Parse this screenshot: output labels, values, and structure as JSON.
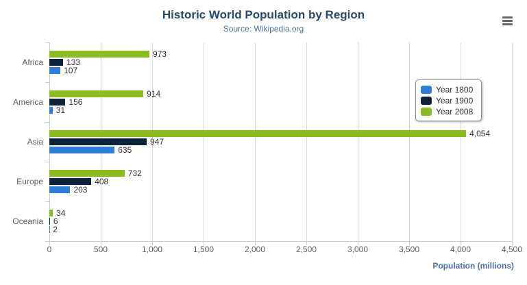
{
  "title": "Historic World Population by Region",
  "subtitle": "Source: Wikipedia.org",
  "menu_icon": "hamburger-menu-icon",
  "colors": {
    "title": "#274b6d",
    "subtitle": "#4d759e",
    "axis_label": "#606060",
    "data_label": "#333333",
    "grid_line": "#d9d9d9",
    "axis_line": "#c0d0e0",
    "legend_border": "#909090",
    "burger": "#666666",
    "axis_title": "#4572a7",
    "series_1800": "#2f7ed8",
    "series_1900": "#0d233a",
    "series_2008": "#8bbc21"
  },
  "legend": {
    "position": "right",
    "items": [
      {
        "label": "Year 1800",
        "color": "#2f7ed8"
      },
      {
        "label": "Year 1900",
        "color": "#0d233a"
      },
      {
        "label": "Year 2008",
        "color": "#8bbc21"
      }
    ]
  },
  "xaxis": {
    "title": "Population (millions)",
    "tick_labels": [
      "0",
      "500",
      "1,000",
      "1,500",
      "2,000",
      "2,500",
      "3,000",
      "3,500",
      "4,000",
      "4,500"
    ],
    "min": 0,
    "max": 4500,
    "tick_interval": 500
  },
  "chart_data": {
    "type": "bar",
    "title": "Historic World Population by Region",
    "subtitle": "Source: Wikipedia.org",
    "categories": [
      "Africa",
      "America",
      "Asia",
      "Europe",
      "Oceania"
    ],
    "series": [
      {
        "name": "Year 1800",
        "color": "#2f7ed8",
        "values": [
          107,
          31,
          635,
          203,
          2
        ]
      },
      {
        "name": "Year 1900",
        "color": "#0d233a",
        "values": [
          133,
          156,
          947,
          408,
          6
        ]
      },
      {
        "name": "Year 2008",
        "color": "#8bbc21",
        "values": [
          973,
          914,
          4054,
          732,
          34
        ]
      }
    ],
    "bar_order_top_to_bottom": [
      "Year 2008",
      "Year 1900",
      "Year 1800"
    ],
    "data_labels_shown": true,
    "xlabel": "Population (millions)",
    "ylabel": "",
    "xlim": [
      0,
      4500
    ],
    "grid": true,
    "legend_position": "right"
  }
}
